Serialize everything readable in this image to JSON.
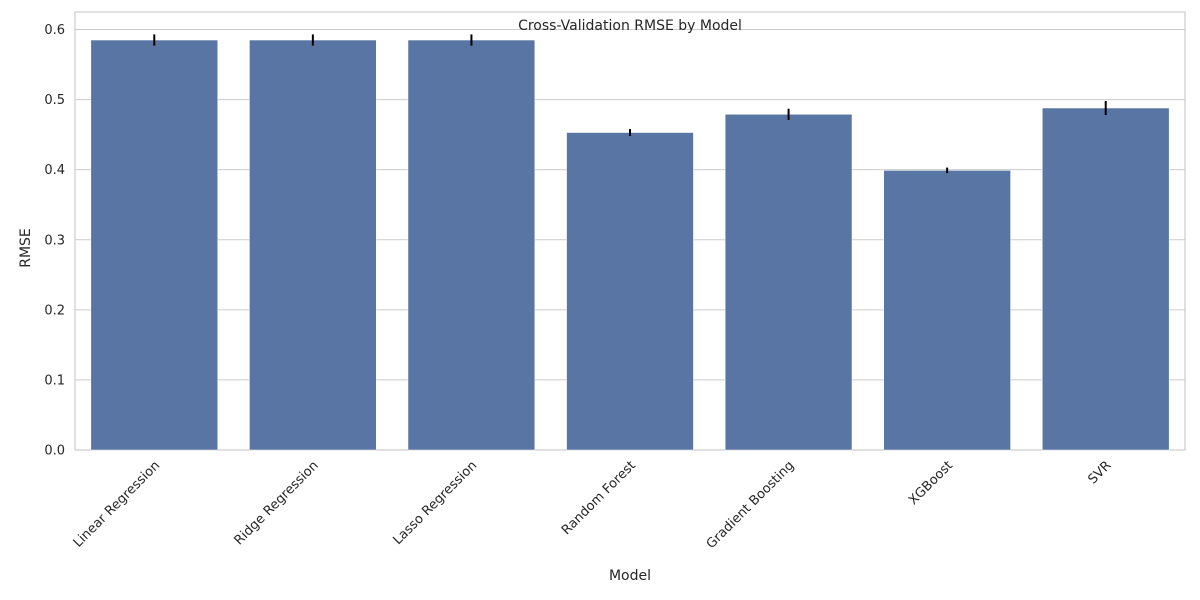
{
  "chart_data": {
    "type": "bar",
    "title": "Cross-Validation RMSE by Model",
    "xlabel": "Model",
    "ylabel": "RMSE",
    "categories": [
      "Linear Regression",
      "Ridge Regression",
      "Lasso Regression",
      "Random Forest",
      "Gradient Boosting",
      "XGBoost",
      "SVR"
    ],
    "values": [
      0.585,
      0.585,
      0.585,
      0.453,
      0.479,
      0.399,
      0.488
    ],
    "errors": [
      0.008,
      0.008,
      0.008,
      0.005,
      0.008,
      0.004,
      0.01
    ],
    "ylim": [
      0,
      0.625
    ],
    "yticks": [
      "0.0",
      "0.1",
      "0.2",
      "0.3",
      "0.4",
      "0.5",
      "0.6"
    ],
    "grid": true,
    "bar_color": "#5875a4",
    "error_color": "#000000"
  }
}
